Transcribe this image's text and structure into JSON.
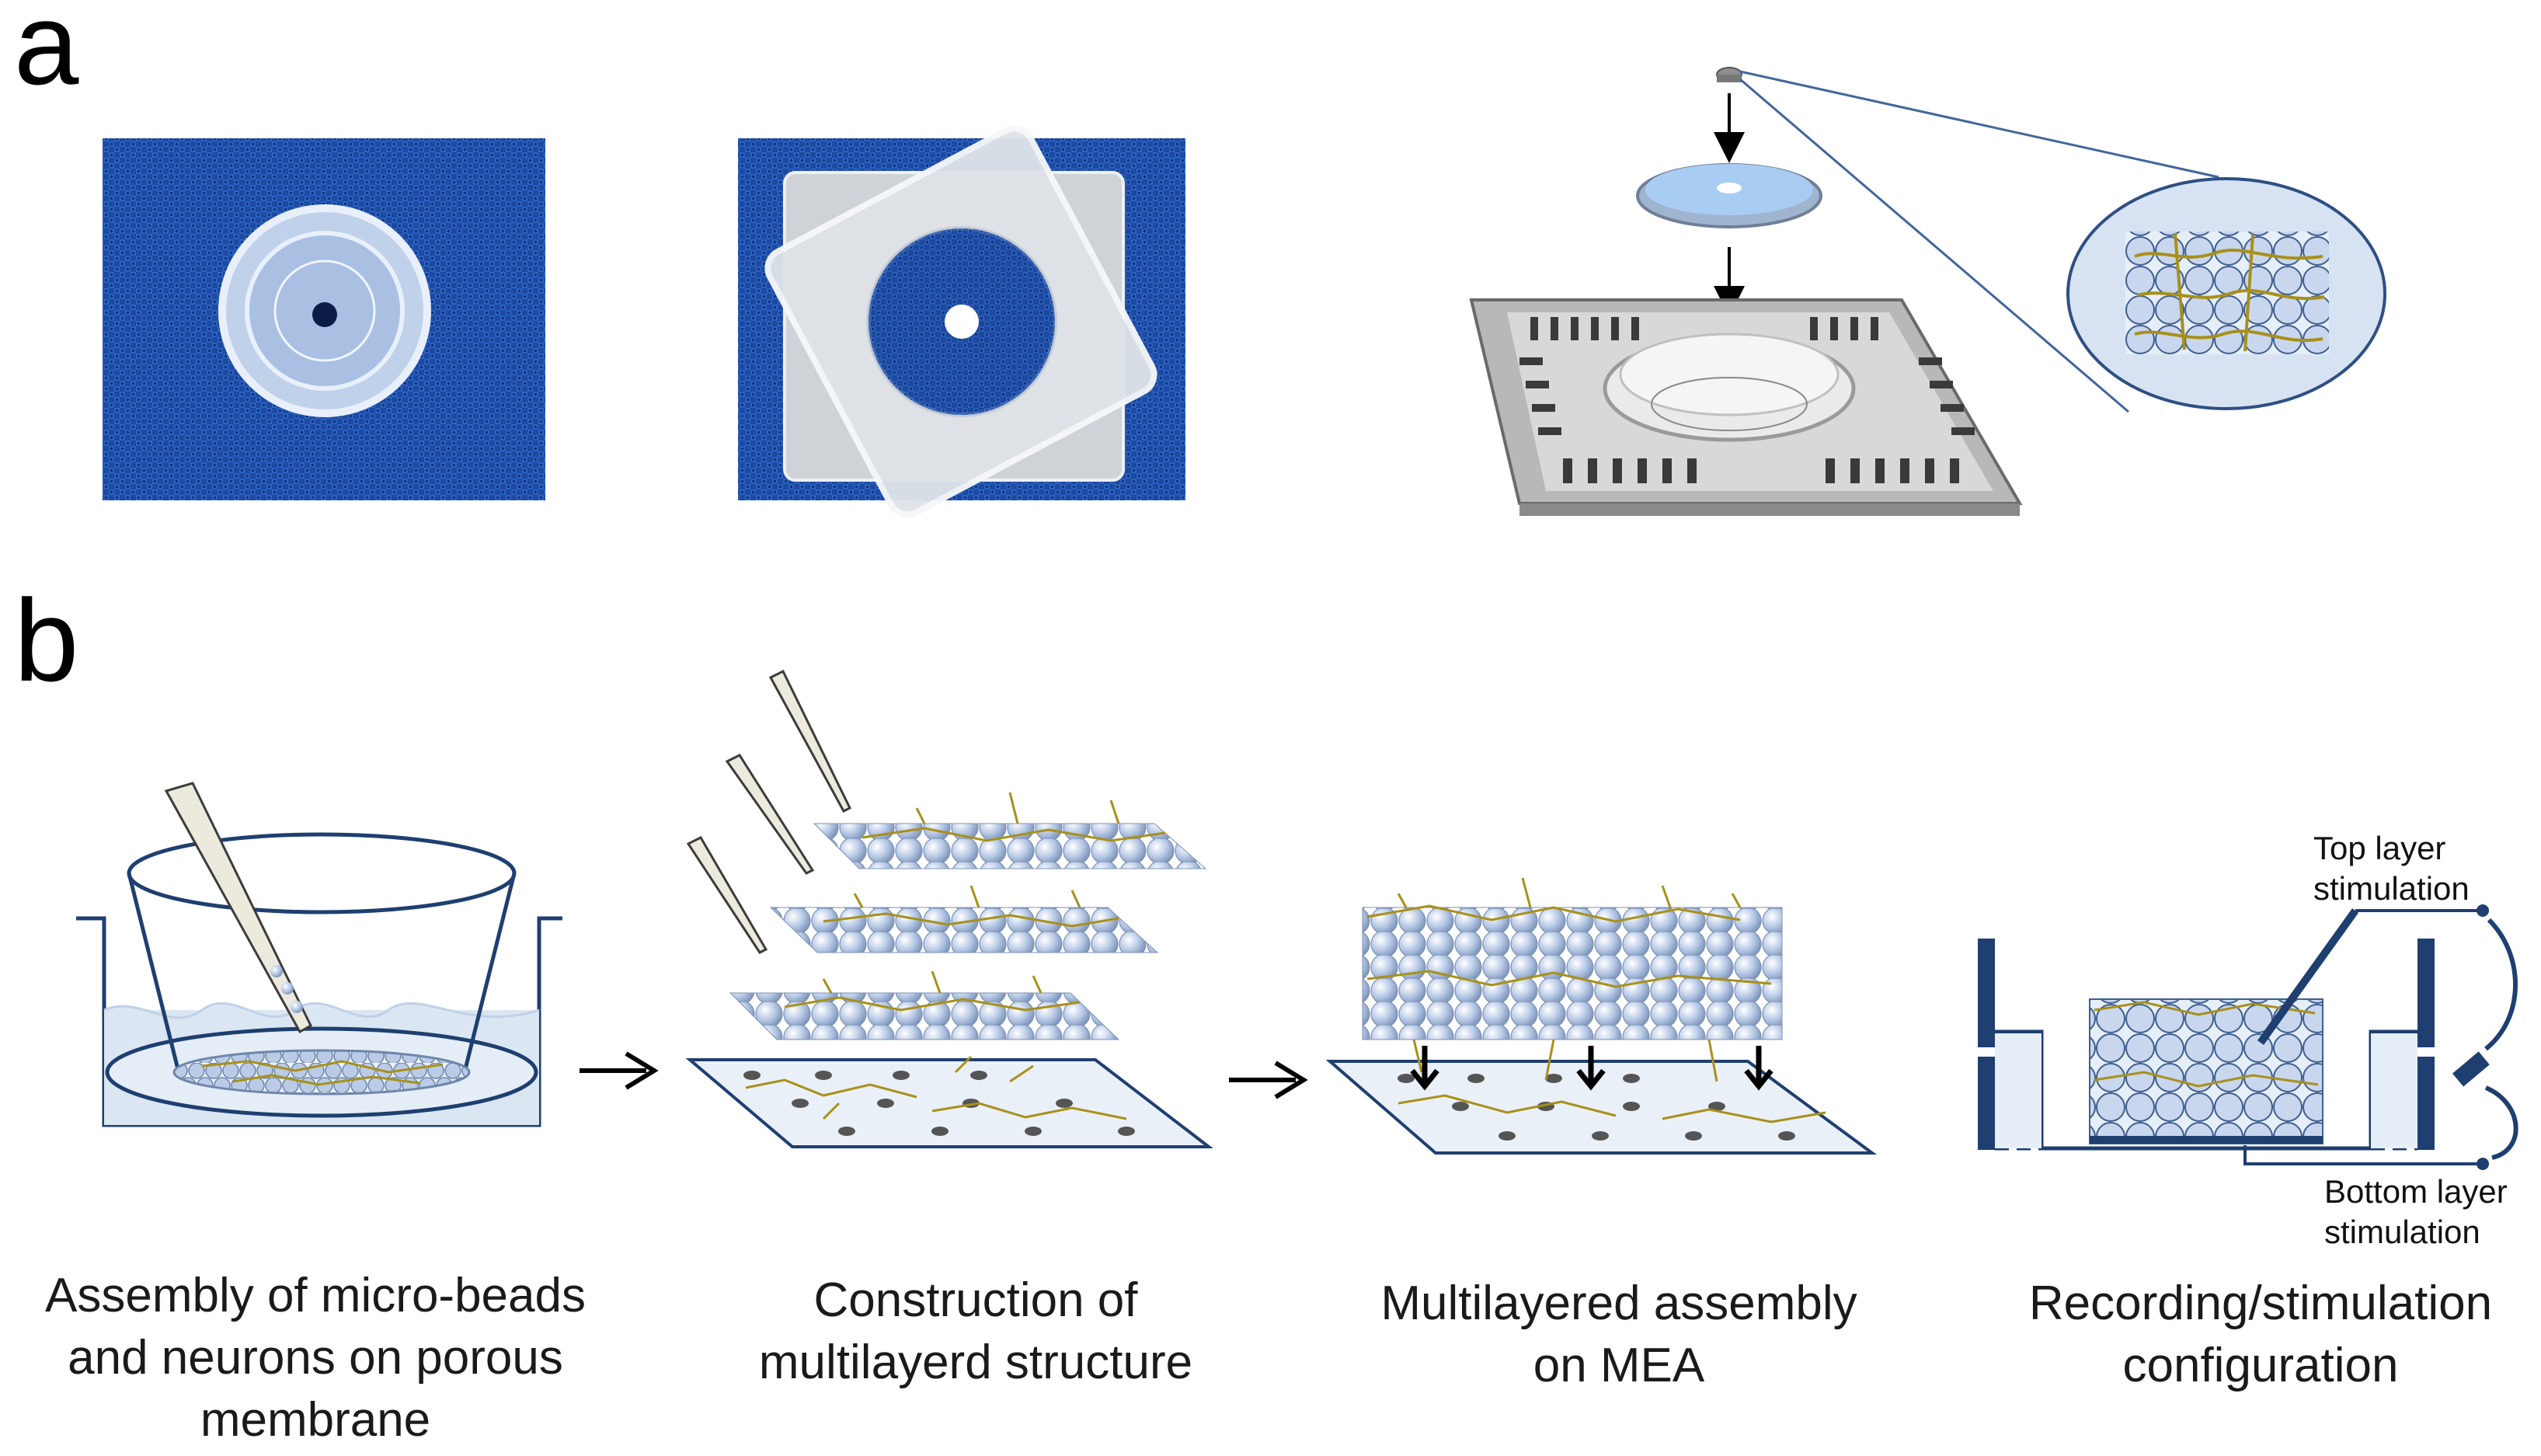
{
  "panels": {
    "a": {
      "letter": "a"
    },
    "b": {
      "letter": "b"
    }
  },
  "captions": {
    "step1": [
      "Assembly of micro-beads",
      "and neurons on porous",
      "membrane"
    ],
    "step2": [
      "Construction of",
      "multilayerd structure"
    ],
    "step3": [
      "Multilayered assembly",
      "on MEA"
    ],
    "step4": [
      "Recording/stimulation",
      "configuration"
    ]
  },
  "stimulation_labels": {
    "top": [
      "Top layer",
      "stimulation"
    ],
    "bottom": [
      "Bottom layer",
      "stimulation"
    ]
  },
  "colors": {
    "fabric_blue": "#1f4fa8",
    "bead": "#b9cbe6",
    "bead_stroke": "#6f86ab",
    "neuron": "#a8901a",
    "navy": "#1e3f70",
    "liquid": "#dbe6f3"
  }
}
